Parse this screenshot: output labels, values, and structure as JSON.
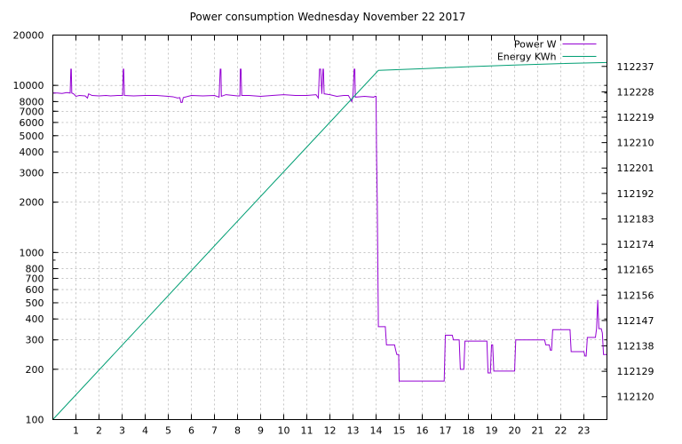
{
  "chart_data": {
    "type": "line",
    "title": "Power consumption Wednesday November 22 2017",
    "x": {
      "range": [
        0,
        24
      ],
      "ticks": [
        1,
        2,
        3,
        4,
        5,
        6,
        7,
        8,
        9,
        10,
        11,
        12,
        13,
        14,
        15,
        16,
        17,
        18,
        19,
        20,
        21,
        22,
        23
      ],
      "grid": true
    },
    "y_left": {
      "scale": "log",
      "range": [
        100,
        20000
      ],
      "ticks": [
        100,
        200,
        300,
        400,
        500,
        600,
        700,
        800,
        1000,
        2000,
        3000,
        4000,
        5000,
        6000,
        7000,
        8000,
        10000,
        20000
      ],
      "grid": true
    },
    "y_right": {
      "scale": "linear",
      "range": [
        112111.9,
        112248.1
      ],
      "ticks": [
        112120,
        112129,
        112138,
        112147,
        112156,
        112165,
        112174,
        112183,
        112192,
        112201,
        112210,
        112219,
        112228,
        112237
      ]
    },
    "legend": {
      "position": "top-right"
    },
    "series": [
      {
        "name": "Power W",
        "axis": "left",
        "color": "#9400d3",
        "points": [
          [
            0,
            9000
          ],
          [
            0.2,
            9000
          ],
          [
            0.4,
            8950
          ],
          [
            0.6,
            9050
          ],
          [
            0.75,
            9000
          ],
          [
            0.78,
            12500
          ],
          [
            0.8,
            12500
          ],
          [
            0.82,
            9000
          ],
          [
            0.9,
            8900
          ],
          [
            1.0,
            8600
          ],
          [
            1.15,
            8700
          ],
          [
            1.4,
            8650
          ],
          [
            1.5,
            8400
          ],
          [
            1.55,
            8900
          ],
          [
            1.7,
            8700
          ],
          [
            2.0,
            8650
          ],
          [
            2.3,
            8700
          ],
          [
            2.5,
            8650
          ],
          [
            2.8,
            8700
          ],
          [
            3.02,
            8700
          ],
          [
            3.05,
            12500
          ],
          [
            3.07,
            12500
          ],
          [
            3.1,
            8700
          ],
          [
            3.5,
            8650
          ],
          [
            4.0,
            8700
          ],
          [
            4.5,
            8700
          ],
          [
            5.0,
            8600
          ],
          [
            5.2,
            8550
          ],
          [
            5.4,
            8400
          ],
          [
            5.5,
            8450
          ],
          [
            5.55,
            7900
          ],
          [
            5.6,
            7900
          ],
          [
            5.65,
            8450
          ],
          [
            6.0,
            8700
          ],
          [
            6.5,
            8650
          ],
          [
            7.0,
            8700
          ],
          [
            7.2,
            8500
          ],
          [
            7.25,
            12500
          ],
          [
            7.28,
            12500
          ],
          [
            7.3,
            8600
          ],
          [
            7.5,
            8800
          ],
          [
            8.0,
            8650
          ],
          [
            8.1,
            8650
          ],
          [
            8.12,
            12500
          ],
          [
            8.15,
            12500
          ],
          [
            8.18,
            8700
          ],
          [
            8.5,
            8700
          ],
          [
            9.0,
            8600
          ],
          [
            9.5,
            8700
          ],
          [
            10.0,
            8800
          ],
          [
            10.5,
            8700
          ],
          [
            11.0,
            8700
          ],
          [
            11.4,
            8800
          ],
          [
            11.5,
            8400
          ],
          [
            11.55,
            12500
          ],
          [
            11.6,
            12500
          ],
          [
            11.65,
            8900
          ],
          [
            11.7,
            12500
          ],
          [
            11.72,
            12500
          ],
          [
            11.75,
            8900
          ],
          [
            12.0,
            8800
          ],
          [
            12.3,
            8600
          ],
          [
            12.6,
            8700
          ],
          [
            12.8,
            8700
          ],
          [
            12.95,
            8000
          ],
          [
            13.0,
            8700
          ],
          [
            13.05,
            12500
          ],
          [
            13.08,
            12500
          ],
          [
            13.1,
            8500
          ],
          [
            13.5,
            8600
          ],
          [
            13.9,
            8500
          ],
          [
            13.95,
            8600
          ],
          [
            14.0,
            8600
          ],
          [
            14.02,
            4000
          ],
          [
            14.05,
            2100
          ],
          [
            14.1,
            360
          ],
          [
            14.4,
            360
          ],
          [
            14.45,
            280
          ],
          [
            14.8,
            280
          ],
          [
            14.85,
            260
          ],
          [
            14.9,
            245
          ],
          [
            14.98,
            245
          ],
          [
            15.0,
            170
          ],
          [
            16.5,
            170
          ],
          [
            16.95,
            170
          ],
          [
            17.0,
            320
          ],
          [
            17.3,
            320
          ],
          [
            17.35,
            300
          ],
          [
            17.6,
            300
          ],
          [
            17.65,
            200
          ],
          [
            17.8,
            200
          ],
          [
            17.85,
            295
          ],
          [
            18.4,
            295
          ],
          [
            18.8,
            295
          ],
          [
            18.85,
            190
          ],
          [
            18.95,
            190
          ],
          [
            19.0,
            280
          ],
          [
            19.05,
            280
          ],
          [
            19.1,
            195
          ],
          [
            19.5,
            195
          ],
          [
            20.0,
            195
          ],
          [
            20.05,
            300
          ],
          [
            21.0,
            300
          ],
          [
            21.3,
            300
          ],
          [
            21.35,
            280
          ],
          [
            21.5,
            280
          ],
          [
            21.55,
            260
          ],
          [
            21.6,
            260
          ],
          [
            21.65,
            345
          ],
          [
            22.0,
            345
          ],
          [
            22.4,
            345
          ],
          [
            22.45,
            255
          ],
          [
            22.8,
            255
          ],
          [
            23.0,
            255
          ],
          [
            23.05,
            240
          ],
          [
            23.1,
            240
          ],
          [
            23.15,
            310
          ],
          [
            23.5,
            310
          ],
          [
            23.55,
            350
          ],
          [
            23.6,
            520
          ],
          [
            23.65,
            350
          ],
          [
            23.75,
            350
          ],
          [
            23.8,
            330
          ],
          [
            23.85,
            245
          ],
          [
            24.0,
            245
          ]
        ]
      },
      {
        "name": "Energy KWh",
        "axis": "right",
        "color": "#009e73",
        "points": [
          [
            0,
            112111.9
          ],
          [
            3.6,
            112143.5
          ],
          [
            7.2,
            112175.2
          ],
          [
            10.8,
            112206.7
          ],
          [
            14.1,
            112235.6
          ],
          [
            16.0,
            112236.2
          ],
          [
            18.0,
            112236.9
          ],
          [
            20.0,
            112237.5
          ],
          [
            22.0,
            112238.0
          ],
          [
            24.0,
            112238.4
          ]
        ]
      }
    ]
  }
}
